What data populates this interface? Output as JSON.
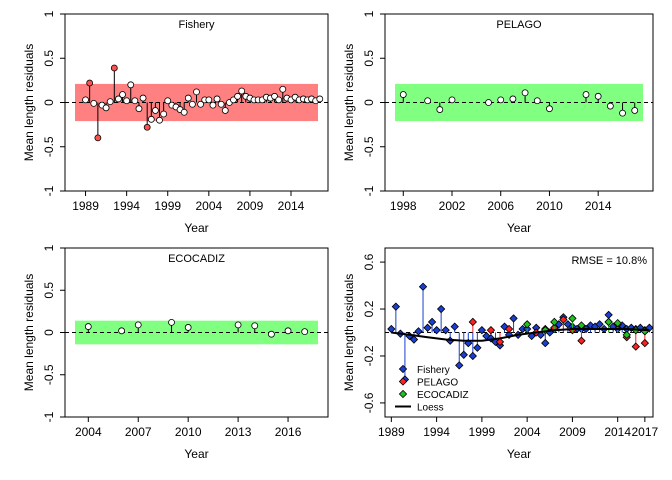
{
  "chart_data": [
    {
      "type": "scatter",
      "title": "Fishery",
      "xlabel": "Year",
      "ylabel": "Mean length residuals",
      "xlim": [
        1986.5,
        2018.5
      ],
      "ylim": [
        -1,
        1
      ],
      "xticks": [
        1989,
        1994,
        1999,
        2004,
        2009,
        2014
      ],
      "yticks": [
        -1,
        -0.5,
        0,
        0.5,
        1
      ],
      "ytick_labels": [
        "-1",
        "-0.5",
        "0",
        "0.5",
        "1"
      ],
      "band": {
        "ymin": -0.21,
        "ymax": 0.21,
        "color": "#ff8080"
      },
      "x": [
        1989,
        1989.5,
        1990,
        1990.5,
        1991,
        1991.5,
        1992,
        1992.5,
        1993,
        1993.5,
        1994,
        1994.5,
        1995,
        1995.5,
        1996,
        1996.5,
        1997,
        1997.5,
        1998,
        1998.5,
        1999,
        1999.5,
        2000,
        2000.5,
        2001,
        2001.5,
        2002,
        2002.5,
        2003,
        2003.5,
        2004,
        2004.5,
        2005,
        2005.5,
        2006,
        2006.5,
        2007,
        2007.5,
        2008,
        2008.5,
        2009,
        2009.5,
        2010,
        2010.5,
        2011,
        2011.5,
        2012,
        2012.5,
        2013,
        2013.5,
        2014,
        2014.5,
        2015,
        2015.5,
        2016,
        2016.5,
        2017,
        2017.5
      ],
      "y": [
        0.03,
        0.22,
        -0.01,
        -0.4,
        -0.03,
        -0.06,
        0.01,
        0.39,
        0.04,
        0.09,
        0.02,
        0.2,
        0.02,
        -0.07,
        0.05,
        -0.28,
        -0.19,
        -0.09,
        -0.2,
        -0.13,
        0.02,
        -0.03,
        -0.05,
        -0.08,
        -0.11,
        0.05,
        -0.02,
        0.12,
        -0.02,
        0.03,
        0.03,
        -0.03,
        0.04,
        -0.02,
        -0.09,
        0.0,
        0.03,
        0.07,
        0.13,
        0.07,
        0.05,
        0.03,
        0.03,
        0.03,
        0.06,
        0.05,
        0.07,
        0.03,
        0.15,
        0.05,
        0.03,
        0.06,
        0.03,
        0.04,
        0.03,
        0.04,
        0.02,
        0.04
      ],
      "point_colors": [
        "#ffffff",
        "#ff5050",
        "#ffffff",
        "#ff5050",
        "#ffffff",
        "#ffffff",
        "#ffffff",
        "#ff5050",
        "#ffffff",
        "#ffffff",
        "#ffffff",
        "#ffffff",
        "#ffffff",
        "#ffffff",
        "#ffffff",
        "#ff5050",
        "#ffffff",
        "#ffffff",
        "#ffffff",
        "#ffffff",
        "#ffffff",
        "#ffffff",
        "#ffffff",
        "#ffffff",
        "#ffffff",
        "#ffffff",
        "#ffffff",
        "#ffffff",
        "#ffffff",
        "#ffffff",
        "#ffffff",
        "#ffffff",
        "#ffffff",
        "#ffffff",
        "#ffffff",
        "#ffffff",
        "#ffffff",
        "#ffffff",
        "#ffffff",
        "#ffffff",
        "#ffffff",
        "#ffffff",
        "#ffffff",
        "#ffffff",
        "#ffffff",
        "#ffffff",
        "#ffffff",
        "#ffffff",
        "#ffffff",
        "#ffffff",
        "#ffffff",
        "#ffffff",
        "#ffffff",
        "#ffffff",
        "#ffffff",
        "#ffffff",
        "#ffffff",
        "#ffffff"
      ]
    },
    {
      "type": "scatter",
      "title": "PELAGO",
      "xlabel": "Year",
      "ylabel": "Mean length residuals",
      "xlim": [
        1996.5,
        2018.5
      ],
      "ylim": [
        -1,
        1
      ],
      "xticks": [
        1998,
        2002,
        2006,
        2010,
        2014
      ],
      "yticks": [
        -1,
        -0.5,
        0,
        0.5,
        1
      ],
      "ytick_labels": [
        "-1",
        "-0.5",
        "0",
        "0.5",
        "1"
      ],
      "band": {
        "ymin": -0.21,
        "ymax": 0.21,
        "color": "#80ff80"
      },
      "x": [
        1998,
        2000,
        2001,
        2002,
        2005,
        2006,
        2007,
        2008,
        2009,
        2010,
        2013,
        2014,
        2015,
        2016,
        2017
      ],
      "y": [
        0.09,
        0.02,
        -0.08,
        0.03,
        0.0,
        0.03,
        0.04,
        0.11,
        0.02,
        -0.07,
        0.09,
        0.07,
        -0.04,
        -0.12,
        -0.09
      ]
    },
    {
      "type": "scatter",
      "title": "ECOCADIZ",
      "xlabel": "Year",
      "ylabel": "Mean length residuals",
      "xlim": [
        2002.6,
        2018.4
      ],
      "ylim": [
        -1,
        1
      ],
      "xticks": [
        2004,
        2007,
        2010,
        2013,
        2016
      ],
      "yticks": [
        -1,
        -0.5,
        0,
        0.5,
        1
      ],
      "ytick_labels": [
        "-1",
        "-0.5",
        "0",
        "0.5",
        "1"
      ],
      "band": {
        "ymin": -0.14,
        "ymax": 0.14,
        "color": "#80ff80"
      },
      "x": [
        2004,
        2006,
        2007,
        2009,
        2010,
        2013,
        2014,
        2015,
        2016,
        2017
      ],
      "y": [
        0.07,
        0.02,
        0.09,
        0.12,
        0.06,
        0.09,
        0.08,
        -0.02,
        0.02,
        0.01
      ]
    },
    {
      "type": "scatter",
      "title": "",
      "annotation": "RMSE = 10.8%",
      "xlabel": "Year",
      "ylabel": "Mean length residuals",
      "xlim": [
        1988.3,
        2017.9
      ],
      "ylim": [
        -0.72,
        0.72
      ],
      "xticks": [
        1989,
        1994,
        1999,
        2004,
        2009,
        2014,
        2017
      ],
      "yticks": [
        -0.6,
        -0.2,
        0.2,
        0.6
      ],
      "ytick_labels": [
        "-0.6",
        "-0.2",
        "0.2",
        "0.6"
      ],
      "legend_position": "bottom-left",
      "series": [
        {
          "name": "Fishery",
          "color": "#1a3fd0",
          "x": [
            1989,
            1989.5,
            1990,
            1990.5,
            1991,
            1991.5,
            1992,
            1992.5,
            1993,
            1993.5,
            1994,
            1994.5,
            1995,
            1995.5,
            1996,
            1996.5,
            1997,
            1997.5,
            1998,
            1998.5,
            1999,
            1999.5,
            2000,
            2000.5,
            2001,
            2001.5,
            2002,
            2002.5,
            2003,
            2003.5,
            2004,
            2004.5,
            2005,
            2005.5,
            2006,
            2006.5,
            2007,
            2007.5,
            2008,
            2008.5,
            2009,
            2009.5,
            2010,
            2010.5,
            2011,
            2011.5,
            2012,
            2012.5,
            2013,
            2013.5,
            2014,
            2014.5,
            2015,
            2015.5,
            2016,
            2016.5,
            2017,
            2017.5
          ],
          "y": [
            0.03,
            0.22,
            -0.01,
            -0.4,
            -0.03,
            -0.06,
            0.01,
            0.39,
            0.04,
            0.09,
            0.02,
            0.2,
            0.02,
            -0.07,
            0.05,
            -0.28,
            -0.19,
            -0.09,
            -0.2,
            -0.13,
            0.02,
            -0.03,
            -0.05,
            -0.08,
            -0.11,
            0.05,
            -0.02,
            0.12,
            -0.02,
            0.03,
            0.03,
            -0.03,
            0.04,
            -0.02,
            -0.09,
            0.0,
            0.03,
            0.07,
            0.13,
            0.07,
            0.05,
            0.03,
            0.03,
            0.03,
            0.06,
            0.05,
            0.07,
            0.03,
            0.15,
            0.05,
            0.03,
            0.06,
            0.03,
            0.04,
            0.03,
            0.04,
            0.02,
            0.04
          ]
        },
        {
          "name": "PELAGO",
          "color": "#ff2020",
          "x": [
            1998,
            2000,
            2001,
            2002,
            2005,
            2006,
            2007,
            2008,
            2009,
            2010,
            2013,
            2014,
            2015,
            2016,
            2017
          ],
          "y": [
            0.09,
            0.02,
            -0.08,
            0.03,
            0.0,
            0.03,
            0.04,
            0.11,
            0.02,
            -0.07,
            0.09,
            0.07,
            -0.04,
            -0.12,
            -0.09
          ]
        },
        {
          "name": "ECOCADIZ",
          "color": "#20c020",
          "x": [
            2004,
            2006,
            2007,
            2009,
            2010,
            2013,
            2014,
            2015,
            2016,
            2017
          ],
          "y": [
            0.07,
            0.02,
            0.09,
            0.12,
            0.06,
            0.09,
            0.08,
            -0.02,
            0.02,
            0.01
          ]
        },
        {
          "name": "Loess",
          "color": "#000000",
          "kind": "line",
          "x": [
            1989,
            1991,
            1993,
            1995,
            1997,
            1999,
            2001,
            2003,
            2005,
            2007,
            2009,
            2011,
            2013,
            2015,
            2017.5
          ],
          "y": [
            0.0,
            -0.02,
            -0.04,
            -0.06,
            -0.07,
            -0.07,
            -0.05,
            -0.02,
            0.0,
            0.02,
            0.03,
            0.03,
            0.03,
            0.03,
            0.02
          ]
        }
      ]
    }
  ]
}
